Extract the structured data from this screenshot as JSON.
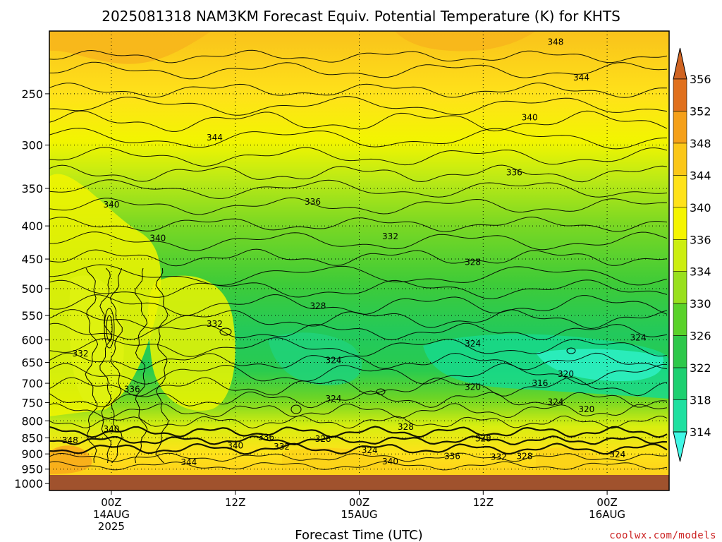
{
  "chart_data": {
    "type": "heatmap",
    "title": "2025081318 NAM3KM Forecast Equiv. Potential Temperature (K) for KHTS",
    "xlabel": "Forecast Time (UTC)",
    "y_ticks": [
      250,
      300,
      350,
      400,
      450,
      500,
      550,
      600,
      650,
      700,
      750,
      800,
      850,
      900,
      950,
      1000
    ],
    "y_range": [
      1025,
      200
    ],
    "y_scale": "log-pressure",
    "grid": true,
    "x_ticks": [
      {
        "hour": 0,
        "lines": [
          "00Z",
          "14AUG",
          "2025"
        ]
      },
      {
        "hour": 12,
        "lines": [
          "12Z"
        ]
      },
      {
        "hour": 24,
        "lines": [
          "00Z",
          "15AUG"
        ]
      },
      {
        "hour": 36,
        "lines": [
          "12Z"
        ]
      },
      {
        "hour": 48,
        "lines": [
          "00Z",
          "16AUG"
        ]
      }
    ],
    "x_range": [
      -6,
      54
    ],
    "colorbar": {
      "labels": [
        356,
        352,
        348,
        344,
        340,
        336,
        334,
        330,
        326,
        322,
        318,
        314
      ],
      "colors": [
        "#e0701e",
        "#f5a01a",
        "#fbc719",
        "#ffe21a",
        "#f5f500",
        "#ccee11",
        "#99e01e",
        "#5ad22a",
        "#2ec84a",
        "#1ed070",
        "#1fe0a0",
        "#30f4d0"
      ],
      "top_arrow_color": "#d06422",
      "bottom_arrow_color": "#40f8e6"
    },
    "contour_labels": [
      {
        "text": "348",
        "hour": 43,
        "p": 208
      },
      {
        "text": "344",
        "hour": 45.5,
        "p": 236
      },
      {
        "text": "340",
        "hour": 40.5,
        "p": 272
      },
      {
        "text": "344",
        "hour": 10,
        "p": 292
      },
      {
        "text": "336",
        "hour": 39,
        "p": 331
      },
      {
        "text": "336",
        "hour": 19.5,
        "p": 367
      },
      {
        "text": "340",
        "hour": 0,
        "p": 371
      },
      {
        "text": "332",
        "hour": 27,
        "p": 415
      },
      {
        "text": "340",
        "hour": 4.5,
        "p": 418
      },
      {
        "text": "328",
        "hour": 35,
        "p": 455
      },
      {
        "text": "328",
        "hour": 20,
        "p": 532
      },
      {
        "text": "332",
        "hour": 10,
        "p": 567
      },
      {
        "text": "324",
        "hour": 35,
        "p": 608
      },
      {
        "text": "324",
        "hour": 51,
        "p": 595
      },
      {
        "text": "332",
        "hour": -3,
        "p": 630
      },
      {
        "text": "324",
        "hour": 21.5,
        "p": 645
      },
      {
        "text": "320",
        "hour": 44,
        "p": 677
      },
      {
        "text": "316",
        "hour": 41.5,
        "p": 700
      },
      {
        "text": "320",
        "hour": 35,
        "p": 710
      },
      {
        "text": "336",
        "hour": 2,
        "p": 715
      },
      {
        "text": "324",
        "hour": 21.5,
        "p": 740
      },
      {
        "text": "324",
        "hour": 43,
        "p": 748
      },
      {
        "text": "320",
        "hour": 46,
        "p": 768
      },
      {
        "text": "328",
        "hour": 28.5,
        "p": 818
      },
      {
        "text": "340",
        "hour": 0,
        "p": 824
      },
      {
        "text": "336",
        "hour": 15,
        "p": 848
      },
      {
        "text": "328",
        "hour": 20.5,
        "p": 853
      },
      {
        "text": "328",
        "hour": 36,
        "p": 852
      },
      {
        "text": "348",
        "hour": -4,
        "p": 858
      },
      {
        "text": "340",
        "hour": 12,
        "p": 874
      },
      {
        "text": "332",
        "hour": 16.5,
        "p": 877
      },
      {
        "text": "324",
        "hour": 25,
        "p": 888
      },
      {
        "text": "336",
        "hour": 33,
        "p": 908
      },
      {
        "text": "332",
        "hour": 37.5,
        "p": 910
      },
      {
        "text": "328",
        "hour": 40,
        "p": 908
      },
      {
        "text": "324",
        "hour": 49,
        "p": 902
      },
      {
        "text": "344",
        "hour": 7.5,
        "p": 927
      },
      {
        "text": "340",
        "hour": 27,
        "p": 925
      }
    ]
  },
  "credit": "coolwx.com/models"
}
